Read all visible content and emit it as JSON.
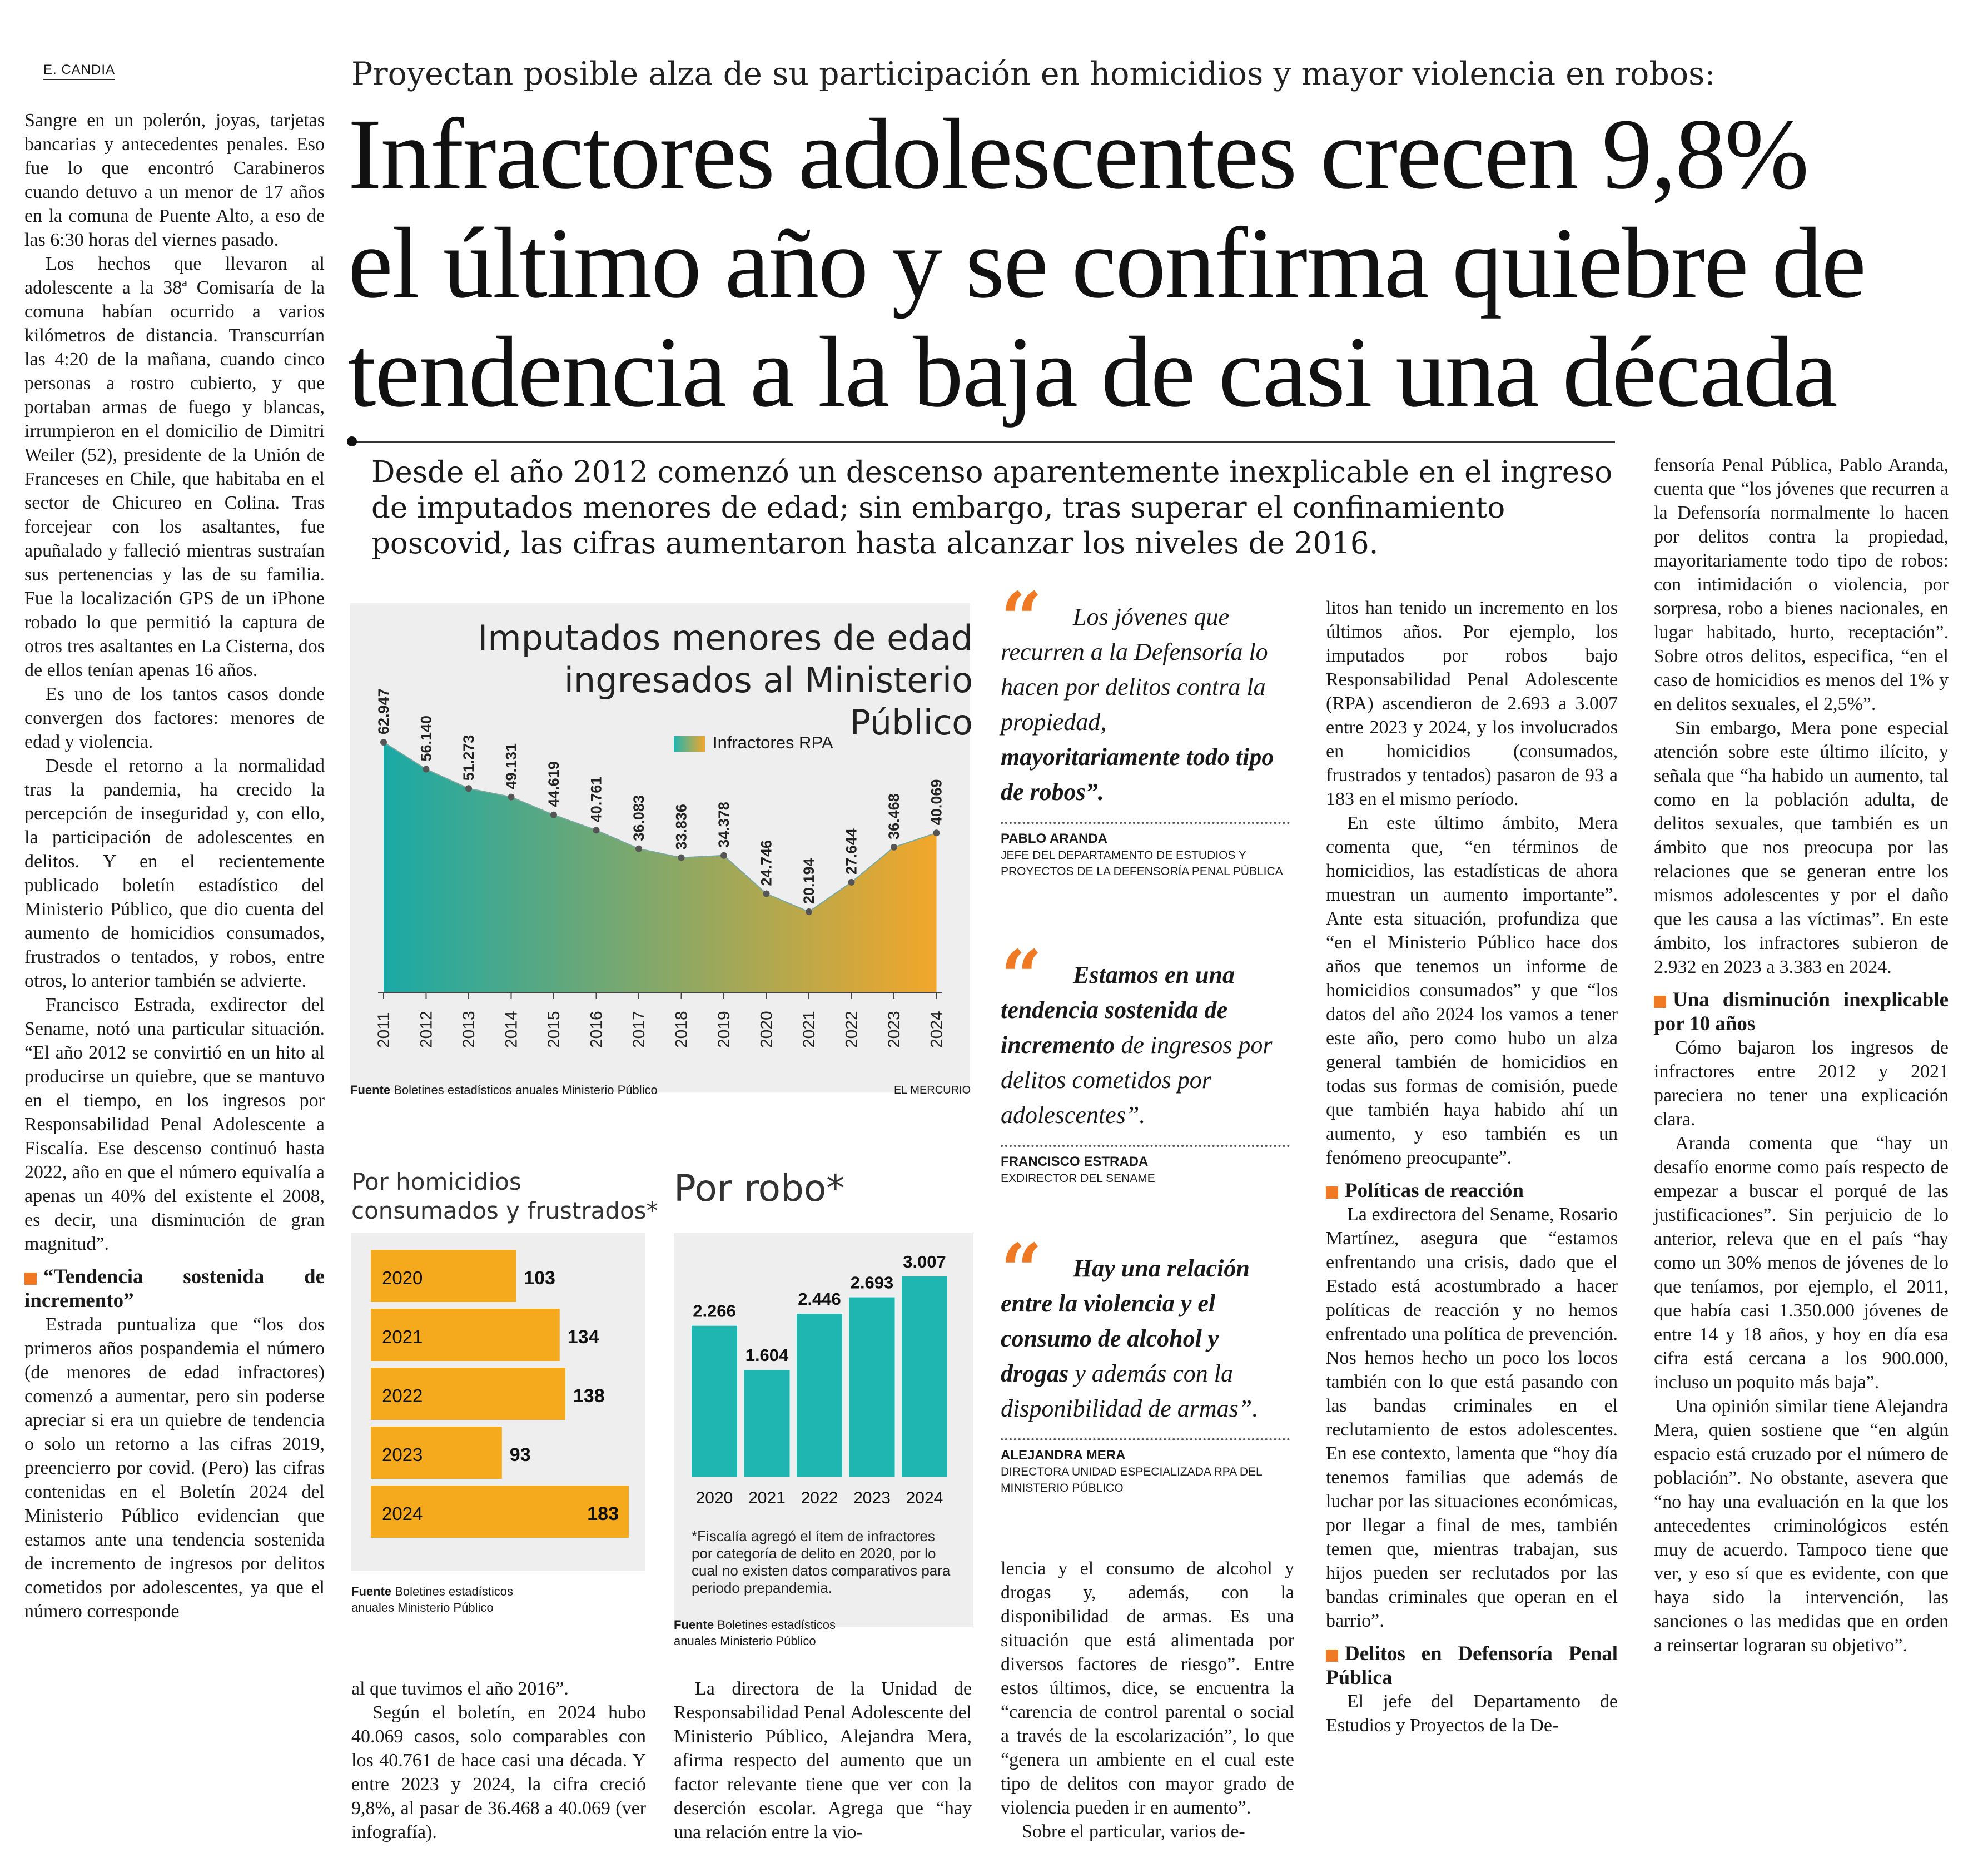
{
  "byline": "E. CANDIA",
  "kicker": "Proyectan posible alza de su participación en homicidios y mayor violencia en robos:",
  "headline": {
    "line1": "Infractores adolescentes crecen 9,8%",
    "line2": "el último año y se confirma quiebre de",
    "line3": "tendencia a la baja de casi una década"
  },
  "lead": {
    "line1": "Desde el año 2012 comenzó un descenso aparentemente inexplicable en el ingreso",
    "line2": "de imputados menores de edad; sin embargo, tras superar el confinamiento",
    "line3": "poscovid, las cifras aumentaron hasta alcanzar los niveles de 2016."
  },
  "col1": {
    "p1": "Sangre en un polerón, joyas, tarjetas bancarias y antecedentes penales. Eso fue lo que encontró Carabineros cuando detuvo a un menor de 17 años en la comuna de Puente Alto, a eso de las 6:30 horas del viernes pasado.",
    "p2": "Los hechos que llevaron al adolescente a la 38ª Comisaría de la comuna habían ocurrido a varios kilómetros de distancia. Transcurrían las 4:20 de la mañana, cuando cinco personas a rostro cubierto, y que portaban armas de fuego y blancas, irrumpieron en el domicilio de Dimitri Weiler (52), presidente de la Unión de Franceses en Chile, que habitaba en el sector de Chicureo en Colina. Tras forcejear con los asaltantes, fue apuñalado y falleció mientras sustraían sus pertenencias y las de su familia. Fue la localización GPS de un iPhone robado lo que permitió la captura de otros tres asaltantes en La Cisterna, dos de ellos tenían apenas 16 años.",
    "p3": "Es uno de los tantos casos donde convergen dos factores: menores de edad y violencia.",
    "p4": "Desde el retorno a la normalidad tras la pandemia, ha crecido la percepción de inseguridad y, con ello, la participación de adolescentes en delitos. Y en el recientemente publicado boletín estadístico del Ministerio Público, que dio cuenta del aumento de homicidios consumados, frustrados o tentados, y robos, entre otros, lo anterior también se advierte.",
    "p5": "Francisco Estrada, exdirector del Sename, notó una particular situación. “El año 2012 se convirtió en un hito al producirse un quiebre, que se mantuvo en el tiempo, en los ingresos por Responsabilidad Penal Adolescente a Fiscalía. Ese descenso continuó hasta 2022, año en que el número equivalía a apenas un 40% del existente el 2008, es decir, una disminución de gran magnitud”.",
    "sub1": "“Tendencia sostenida de incremento”",
    "p6": "Estrada puntualiza que “los dos primeros años pospandemia el número (de menores de edad infractores) comenzó a aumentar, pero sin poderse apreciar si era un quiebre de tendencia o solo un retorno a las cifras 2019, preencierro por covid. (Pero) las cifras contenidas en el Boletín 2024 del Ministerio Público evidencian que estamos ante una tendencia sostenida de incremento de ingresos por delitos cometidos por adolescentes, ya que el número corresponde"
  },
  "col2": {
    "p1": "al que tuvimos el año 2016”.",
    "p2": "Según el boletín, en 2024 hubo 40.069 casos, solo comparables con los 40.761 de hace casi una década. Y entre 2023 y 2024, la cifra creció 9,8%, al pasar de 36.468 a 40.069 (ver infografía)."
  },
  "col3": {
    "p1": "La directora de la Unidad de Responsabilidad Penal Adolescente del Ministerio Público, Alejandra Mera, afirma respecto del aumento que un factor relevante tiene que ver con la deserción escolar. Agrega que “hay una relación entre la vio-"
  },
  "col4": {
    "p1": "lencia y el consumo de alcohol y drogas y, además, con la disponibilidad de armas. Es una situación que está alimentada por diversos factores de riesgo”. Entre estos últimos, dice, se encuentra la “carencia de control parental o social a través de la escolarización”, lo que “genera un ambiente en el cual este tipo de delitos con mayor grado de violencia pueden ir en aumento”.",
    "p2": "Sobre el particular, varios de-"
  },
  "col5": {
    "p1": "litos han tenido un incremento en los últimos años. Por ejemplo, los imputados por robos bajo Responsabilidad Penal Adolescente (RPA) ascendieron de 2.693 a 3.007 entre 2023 y 2024, y los involucrados en homicidios (consumados, frustrados y tentados) pasaron de 93 a 183 en el mismo período.",
    "p2": "En este último ámbito, Mera comenta que, “en términos de homicidios, las estadísticas de ahora muestran un aumento importante”. Ante esta situación, profundiza que “en el Ministerio Público hace dos años que tenemos un informe de homicidios consumados” y que “los datos del año 2024 los vamos a tener este año, pero como hubo un alza general también de homicidios en todas sus formas de comisión, puede que también haya habido ahí un aumento, y eso también es un fenómeno preocupante”.",
    "sub1": "Políticas de reacción",
    "p3": "La exdirectora del Sename, Rosario Martínez, asegura que “estamos enfrentando una crisis, dado que el Estado está acostumbrado a hacer políticas de reacción y no hemos enfrentado una política de prevención. Nos hemos hecho un poco los locos también con lo que está pasando con las bandas criminales en el reclutamiento de estos adolescentes. En ese contexto, lamenta que “hoy día tenemos familias que además de luchar por las situaciones económicas, por llegar a final de mes, también temen que, mientras trabajan, sus hijos pueden ser reclutados por las bandas criminales que operan en el barrio”.",
    "sub2": "Delitos en Defensoría Penal Pública",
    "p4": "El jefe del Departamento de Estudios y Proyectos de la De-"
  },
  "col6": {
    "p1": "fensoría Penal Pública, Pablo Aranda, cuenta que “los jóvenes que recurren a la Defensoría normalmente lo hacen por delitos contra la propiedad, mayoritariamente todo tipo de robos: con intimidación o violencia, por sorpresa, robo a bienes nacionales, en lugar habitado, hurto, receptación”. Sobre otros delitos, especifica, “en el caso de homicidios es menos del 1% y en delitos sexuales, el 2,5%”.",
    "p2": "Sin embargo, Mera pone especial atención sobre este último ilícito, y señala que “ha habido un aumento, tal como en la población adulta, de delitos sexuales, que también es un ámbito que nos preocupa por las relaciones que se generan entre los mismos adolescentes y por el daño que les causa a las víctimas”. En este ámbito, los infractores subieron de 2.932 en 2023 a 3.383 en 2024.",
    "sub1": "Una disminución inexplicable por 10 años",
    "p3": "Cómo bajaron los ingresos de infractores entre 2012 y 2021 pareciera no tener una explicación clara.",
    "p4": "Aranda comenta que “hay un desafío enorme como país respecto de empezar a buscar el porqué de las justificaciones”. Sin perjuicio de lo anterior, releva que en el país “hay como un 30% menos de jóvenes de lo que teníamos, por ejemplo, el 2011, que había casi 1.350.000 jóvenes de entre 14 y 18 años, y hoy en día esa cifra está cercana a los 900.000, incluso un poquito más baja”.",
    "p5": "Una opinión similar tiene Alejandra Mera, quien sostiene que “en algún espacio está cruzado por el número de población”. No obstante, asevera que “no hay una evaluación en la que los antecedentes criminológicos estén muy de acuerdo. Tampoco tiene que ver, y eso sí que es evidente, con que haya sido la intervención, las sanciones o las medidas que en orden a reinsertar lograran su objetivo”."
  },
  "quotes": [
    {
      "mark": "“",
      "italic_a": "Los jóvenes que recurren a la Defensoría lo hacen por delitos contra la propiedad, ",
      "bold": "mayoritariamente todo tipo de robos”.",
      "italic_b": "",
      "name": "PABLO ARANDA",
      "role": "JEFE DEL DEPARTAMENTO DE ESTUDIOS Y PROYECTOS DE LA DEFENSORÍA PENAL PÚBLICA"
    },
    {
      "mark": "“",
      "italic_a": "",
      "bold": "Estamos en una tendencia sostenida de incremento",
      "italic_b": " de ingresos por delitos cometidos por adolescentes”.",
      "name": "FRANCISCO ESTRADA",
      "role": "EXDIRECTOR DEL SENAME"
    },
    {
      "mark": "“",
      "italic_a": "",
      "bold": "Hay una relación entre la violencia y el consumo de alcohol y drogas",
      "italic_b": " y además con la disponibilidad de armas”.",
      "name": "ALEJANDRA MERA",
      "role": "DIRECTORA UNIDAD ESPECIALIZADA RPA DEL MINISTERIO PÚBLICO"
    }
  ],
  "colors": {
    "accent": "#f07a24",
    "teal": "#1fb5b0",
    "amber": "#f5a91c",
    "area_left": "#1aa9a6",
    "area_right": "#f2a72a"
  },
  "chart_data": [
    {
      "type": "area",
      "title": "Imputados menores de edad ingresados al Ministerio Público",
      "legend": "Infractores RPA",
      "categories": [
        "2011",
        "2012",
        "2013",
        "2014",
        "2015",
        "2016",
        "2017",
        "2018",
        "2019",
        "2020",
        "2021",
        "2022",
        "2023",
        "2024"
      ],
      "values": [
        62947,
        56140,
        51273,
        49131,
        44619,
        40761,
        36083,
        33836,
        34378,
        24746,
        20194,
        27644,
        36468,
        40069
      ],
      "labels": [
        "62.947",
        "56.140",
        "51.273",
        "49.131",
        "44.619",
        "40.761",
        "36.083",
        "33.836",
        "34.378",
        "24.746",
        "20.194",
        "27.644",
        "36.468",
        "40.069"
      ],
      "source_label": "Fuente",
      "source": "Boletines estadísticos anuales Ministerio Público",
      "credit": "EL MERCURIO"
    },
    {
      "type": "bar",
      "orientation": "horizontal",
      "title": "Por homicidios consumados y frustrados*",
      "categories": [
        "2020",
        "2021",
        "2022",
        "2023",
        "2024"
      ],
      "values": [
        103,
        134,
        138,
        93,
        183
      ],
      "labels": [
        "103",
        "134",
        "138",
        "93",
        "183"
      ],
      "source_label": "Fuente",
      "source": "Boletines estadísticos anuales Ministerio Público"
    },
    {
      "type": "bar",
      "title": "Por robo*",
      "categories": [
        "2020",
        "2021",
        "2022",
        "2023",
        "2024"
      ],
      "values": [
        2266,
        1604,
        2446,
        2693,
        3007
      ],
      "labels": [
        "2.266",
        "1.604",
        "2.446",
        "2.693",
        "3.007"
      ],
      "footnote": "*Fiscalía agregó el ítem de infractores por categoría de delito en 2020, por lo cual no existen datos comparativos para periodo prepandemia.",
      "source_label": "Fuente",
      "source": "Boletines estadísticos anuales Ministerio Público"
    }
  ]
}
